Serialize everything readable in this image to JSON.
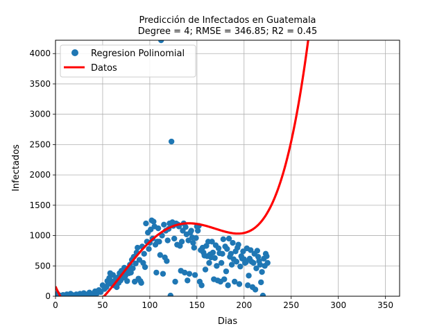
{
  "chart_data": {
    "type": "scatter",
    "title": "Predicción de Infectados en  Guatemala",
    "subtitle": "Degree = 4; RMSE = 346.85; R2 = 0.45",
    "xlabel": "Dias",
    "ylabel": "Infectados",
    "xlim": [
      0,
      365
    ],
    "ylim": [
      0,
      4220
    ],
    "xticks": [
      0,
      50,
      100,
      150,
      200,
      250,
      300,
      350
    ],
    "yticks": [
      0,
      500,
      1000,
      1500,
      2000,
      2500,
      3000,
      3500,
      4000
    ],
    "grid": true,
    "legend_position": "top-left",
    "colors": {
      "scatter": "#1f77b4",
      "fit": "#ff0000"
    },
    "series": [
      {
        "name": "Regresion Polinomial",
        "kind": "scatter",
        "x": [
          2,
          5,
          8,
          10,
          12,
          14,
          16,
          18,
          20,
          22,
          24,
          26,
          28,
          30,
          32,
          34,
          36,
          38,
          40,
          42,
          44,
          46,
          48,
          50,
          52,
          54,
          55,
          56,
          57,
          58,
          59,
          60,
          61,
          62,
          63,
          64,
          65,
          66,
          67,
          68,
          69,
          70,
          71,
          72,
          73,
          74,
          75,
          76,
          77,
          78,
          79,
          80,
          81,
          82,
          83,
          84,
          85,
          86,
          87,
          88,
          89,
          90,
          91,
          92,
          93,
          94,
          95,
          96,
          97,
          98,
          99,
          100,
          101,
          102,
          103,
          104,
          105,
          106,
          107,
          108,
          109,
          110,
          111,
          112,
          113,
          114,
          115,
          116,
          117,
          118,
          119,
          120,
          121,
          122,
          123,
          124,
          125,
          126,
          127,
          128,
          129,
          130,
          131,
          132,
          133,
          134,
          135,
          136,
          137,
          138,
          139,
          140,
          141,
          142,
          143,
          144,
          145,
          146,
          147,
          148,
          149,
          150,
          151,
          152,
          153,
          154,
          155,
          156,
          157,
          158,
          159,
          160,
          161,
          162,
          163,
          164,
          165,
          166,
          167,
          168,
          169,
          170,
          171,
          172,
          173,
          174,
          175,
          176,
          177,
          178,
          179,
          180,
          181,
          182,
          183,
          184,
          185,
          186,
          187,
          188,
          189,
          190,
          191,
          192,
          193,
          194,
          195,
          196,
          197,
          198,
          199,
          200,
          201,
          202,
          203,
          204,
          205,
          206,
          207,
          208,
          209,
          210,
          211,
          212,
          213,
          214,
          215,
          216,
          217,
          218,
          219,
          220,
          221,
          222,
          223,
          224,
          225
        ],
        "y": [
          40,
          10,
          20,
          5,
          30,
          15,
          40,
          20,
          10,
          30,
          25,
          40,
          20,
          50,
          30,
          20,
          60,
          40,
          30,
          80,
          50,
          100,
          70,
          180,
          120,
          150,
          250,
          200,
          300,
          380,
          250,
          200,
          350,
          180,
          220,
          280,
          150,
          310,
          220,
          380,
          260,
          420,
          300,
          350,
          470,
          330,
          400,
          250,
          450,
          380,
          520,
          390,
          600,
          460,
          650,
          240,
          540,
          720,
          800,
          290,
          600,
          250,
          220,
          820,
          550,
          700,
          480,
          1200,
          900,
          1050,
          780,
          880,
          1100,
          1250,
          950,
          1230,
          1150,
          850,
          390,
          900,
          1120,
          900,
          680,
          4220,
          1000,
          370,
          1180,
          640,
          1080,
          580,
          920,
          1110,
          1200,
          10,
          2550,
          1220,
          1160,
          950,
          240,
          1200,
          850,
          1180,
          1150,
          830,
          420,
          900,
          1080,
          1200,
          390,
          1140,
          1020,
          260,
          920,
          370,
          1050,
          1080,
          970,
          880,
          800,
          350,
          960,
          1150,
          1080,
          1160,
          240,
          760,
          180,
          800,
          720,
          670,
          440,
          830,
          660,
          900,
          550,
          690,
          640,
          900,
          720,
          280,
          630,
          840,
          500,
          260,
          790,
          710,
          240,
          550,
          700,
          940,
          280,
          820,
          410,
          780,
          180,
          950,
          650,
          700,
          520,
          880,
          610,
          240,
          740,
          570,
          800,
          850,
          200,
          490,
          660,
          620,
          740,
          610,
          550,
          560,
          790,
          180,
          340,
          620,
          760,
          570,
          150,
          550,
          700,
          110,
          460,
          750,
          650,
          580,
          520,
          230,
          400,
          10,
          620,
          500,
          700,
          660,
          550
        ]
      },
      {
        "name": "Datos",
        "kind": "line",
        "coefficients_desc": [
          1.28e-05,
          -0.006156,
          0.9213,
          -36.01,
          161.0
        ]
      }
    ]
  }
}
